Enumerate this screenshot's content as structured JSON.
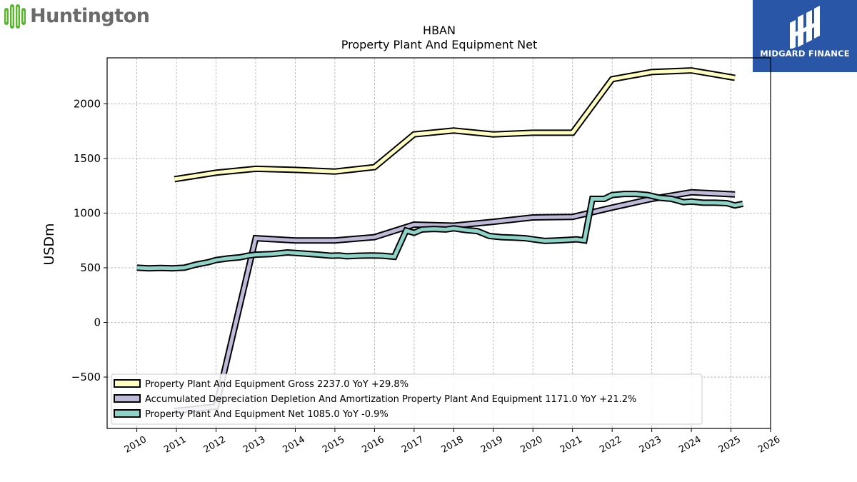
{
  "logos": {
    "left_name": "Huntington",
    "right_name": "MIDGARD FINANCE",
    "right_bg": "#2a56a8"
  },
  "chart_data": {
    "type": "line",
    "title": "HBAN",
    "subtitle": "Property Plant And Equipment Net",
    "ylabel": "USDm",
    "xlabel": "",
    "xlim": [
      2009.25,
      2026
    ],
    "ylim": [
      -970,
      2420
    ],
    "yticks": [
      -500,
      0,
      500,
      1000,
      1500,
      2000
    ],
    "xticks": [
      2010,
      2011,
      2012,
      2013,
      2014,
      2015,
      2016,
      2017,
      2018,
      2019,
      2020,
      2021,
      2022,
      2023,
      2024,
      2025,
      2026
    ],
    "grid": true,
    "legend_position": "lower-left",
    "series": [
      {
        "name": "Property Plant And Equipment Gross",
        "legend": "Property Plant And Equipment Gross  2237.0 YoY +29.8%",
        "color": "#ffffbf",
        "x": [
          2010.95,
          2012.0,
          2013.0,
          2014.0,
          2015.0,
          2016.0,
          2017.0,
          2018.0,
          2019.0,
          2020.0,
          2021.0,
          2022.0,
          2023.0,
          2024.0,
          2025.1
        ],
        "y": [
          1310,
          1370,
          1405,
          1395,
          1380,
          1420,
          1720,
          1755,
          1720,
          1735,
          1735,
          2225,
          2290,
          2305,
          2237
        ]
      },
      {
        "name": "Accumulated Depreciation Depletion And Amortization Property Plant And Equipment",
        "legend": "Accumulated Depreciation Depletion And Amortization Property Plant And Equipment  1171.0 YoY +21.2%",
        "color": "#bebada",
        "x": [
          2010.95,
          2012.0,
          2013.0,
          2014.0,
          2015.0,
          2016.0,
          2017.0,
          2018.0,
          2019.0,
          2020.0,
          2021.0,
          2022.0,
          2023.0,
          2024.0,
          2025.1
        ],
        "y": [
          -810,
          -770,
          770,
          750,
          750,
          780,
          895,
          885,
          920,
          960,
          965,
          1050,
          1130,
          1190,
          1171
        ]
      },
      {
        "name": "Property Plant And Equipment Net",
        "legend": "Property Plant And Equipment Net  1085.0 YoY -0.9%",
        "color": "#8dd3c7",
        "x": [
          2010.0,
          2010.3,
          2010.6,
          2010.9,
          2011.2,
          2011.5,
          2011.8,
          2012.0,
          2012.3,
          2012.6,
          2012.8,
          2013.0,
          2013.4,
          2013.8,
          2014.2,
          2014.6,
          2014.9,
          2015.1,
          2015.3,
          2015.6,
          2015.9,
          2016.2,
          2016.5,
          2016.8,
          2017.0,
          2017.2,
          2017.5,
          2017.8,
          2018.0,
          2018.3,
          2018.6,
          2018.9,
          2019.2,
          2019.5,
          2019.8,
          2020.1,
          2020.3,
          2020.6,
          2020.9,
          2021.1,
          2021.3,
          2021.5,
          2021.8,
          2022.0,
          2022.3,
          2022.6,
          2022.9,
          2023.2,
          2023.5,
          2023.8,
          2024.0,
          2024.3,
          2024.6,
          2024.9,
          2025.1,
          2025.3
        ],
        "y": [
          500,
          495,
          498,
          495,
          500,
          530,
          550,
          570,
          585,
          595,
          610,
          620,
          625,
          640,
          630,
          620,
          610,
          612,
          605,
          610,
          612,
          610,
          600,
          840,
          820,
          850,
          855,
          850,
          860,
          845,
          835,
          790,
          780,
          775,
          770,
          755,
          745,
          750,
          755,
          760,
          750,
          1130,
          1130,
          1165,
          1175,
          1175,
          1165,
          1140,
          1130,
          1100,
          1105,
          1095,
          1095,
          1090,
          1070,
          1085
        ]
      }
    ]
  }
}
